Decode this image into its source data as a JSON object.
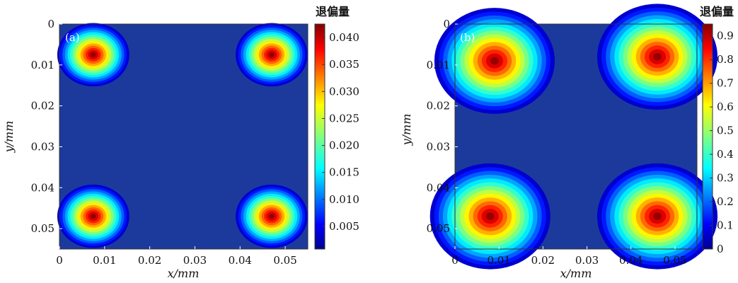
{
  "chart_data": [
    {
      "type": "heatmap",
      "panel_label": "(a)",
      "xlabel": "x/mm",
      "ylabel": "y/mm",
      "xlim": [
        0,
        0.055
      ],
      "ylim": [
        0,
        0.055
      ],
      "y_inverted": true,
      "x_ticks": [
        "0",
        "0.01",
        "0.02",
        "0.03",
        "0.04",
        "0.05"
      ],
      "y_ticks": [
        "0",
        "0.01",
        "0.02",
        "0.03",
        "0.04",
        "0.05"
      ],
      "colorbar": {
        "title": "退偏量",
        "min": 0.0008,
        "max": 0.0425,
        "ticks": [
          "0.005",
          "0.010",
          "0.015",
          "0.020",
          "0.025",
          "0.030",
          "0.035",
          "0.040"
        ]
      },
      "peaks": [
        {
          "x": 0.0075,
          "y": 0.0075,
          "value": 0.042
        },
        {
          "x": 0.047,
          "y": 0.0075,
          "value": 0.042
        },
        {
          "x": 0.0075,
          "y": 0.047,
          "value": 0.042
        },
        {
          "x": 0.047,
          "y": 0.047,
          "value": 0.042
        }
      ]
    },
    {
      "type": "heatmap",
      "panel_label": "(b)",
      "xlabel": "x/mm",
      "ylabel": "y/mm",
      "xlim": [
        0,
        0.055
      ],
      "ylim": [
        0,
        0.055
      ],
      "y_inverted": true,
      "x_ticks": [
        "0",
        "0.01",
        "0.02",
        "0.03",
        "0.04",
        "0.05"
      ],
      "y_ticks": [
        "0",
        "0.01",
        "0.02",
        "0.03",
        "0.04",
        "0.05"
      ],
      "colorbar": {
        "title": "退偏量",
        "min": 0,
        "max": 0.95,
        "ticks": [
          "0",
          "0.1",
          "0.2",
          "0.3",
          "0.4",
          "0.5",
          "0.6",
          "0.7",
          "0.8",
          "0.9"
        ]
      },
      "peaks": [
        {
          "x": 0.009,
          "y": 0.009,
          "value": 0.93
        },
        {
          "x": 0.046,
          "y": 0.008,
          "value": 0.93
        },
        {
          "x": 0.008,
          "y": 0.047,
          "value": 0.93
        },
        {
          "x": 0.046,
          "y": 0.047,
          "value": 0.93
        }
      ]
    }
  ]
}
